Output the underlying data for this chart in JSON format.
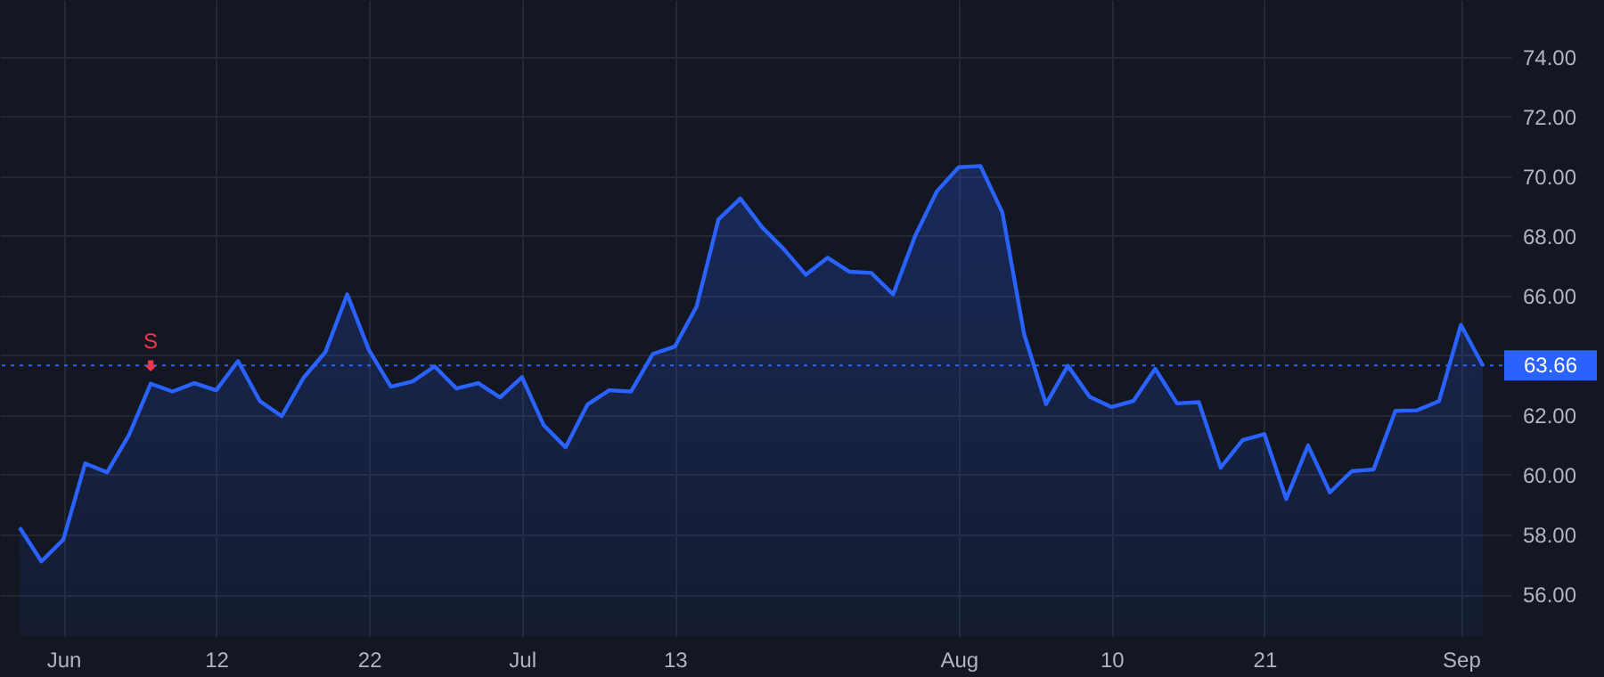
{
  "chart_data": {
    "type": "area",
    "categories": [
      null,
      null,
      "Jun",
      null,
      null,
      null,
      null,
      null,
      null,
      "12",
      null,
      null,
      null,
      null,
      null,
      null,
      "22",
      null,
      null,
      null,
      null,
      null,
      null,
      "Jul",
      null,
      null,
      null,
      null,
      null,
      null,
      "13",
      null,
      null,
      null,
      null,
      null,
      null,
      null,
      null,
      null,
      null,
      null,
      null,
      "Aug",
      null,
      null,
      null,
      null,
      null,
      null,
      "10",
      null,
      null,
      null,
      null,
      null,
      null,
      "21",
      null,
      null,
      null,
      null,
      null,
      null,
      null,
      null,
      "Sep",
      null
    ],
    "series": [
      {
        "color": "#2962ff",
        "values": [
          58.23,
          57.1,
          57.83,
          60.38,
          60.08,
          61.32,
          63.05,
          62.79,
          63.07,
          62.83,
          63.81,
          62.47,
          61.96,
          63.25,
          64.11,
          66.04,
          64.17,
          62.95,
          63.13,
          63.63,
          62.89,
          63.07,
          62.59,
          63.27,
          61.66,
          60.92,
          62.35,
          62.83,
          62.79,
          64.05,
          64.29,
          65.64,
          68.55,
          69.25,
          68.29,
          67.55,
          66.7,
          67.27,
          66.8,
          66.76,
          66.04,
          67.99,
          69.49,
          70.3,
          70.34,
          68.79,
          64.7,
          62.37,
          63.65,
          62.61,
          62.27,
          62.47,
          63.55,
          62.39,
          62.43,
          60.24,
          61.16,
          61.36,
          59.19,
          60.98,
          59.41,
          60.12,
          60.18,
          62.14,
          62.16,
          62.47,
          65.02,
          63.66
        ]
      }
    ],
    "ylim": [
      54.6,
      75.9
    ],
    "yticks": [
      {
        "value": 56,
        "label": "56.00"
      },
      {
        "value": 58,
        "label": "58.00"
      },
      {
        "value": 60,
        "label": "60.00"
      },
      {
        "value": 62,
        "label": "62.00"
      },
      {
        "value": 64,
        "label": null
      },
      {
        "value": 66,
        "label": "66.00"
      },
      {
        "value": 68,
        "label": "68.00"
      },
      {
        "value": 70,
        "label": "70.00"
      },
      {
        "value": 72,
        "label": "72.00"
      },
      {
        "value": 74,
        "label": "74.00"
      }
    ],
    "ref_lines": [
      {
        "axis": "y",
        "value": 63.66,
        "label": "63.66",
        "color": "#2962ff",
        "line_style": "dotted"
      }
    ],
    "annotations": [
      {
        "text": "S",
        "y": 63.05
      }
    ],
    "grid": true,
    "marker": "none",
    "line_style": "solid"
  }
}
